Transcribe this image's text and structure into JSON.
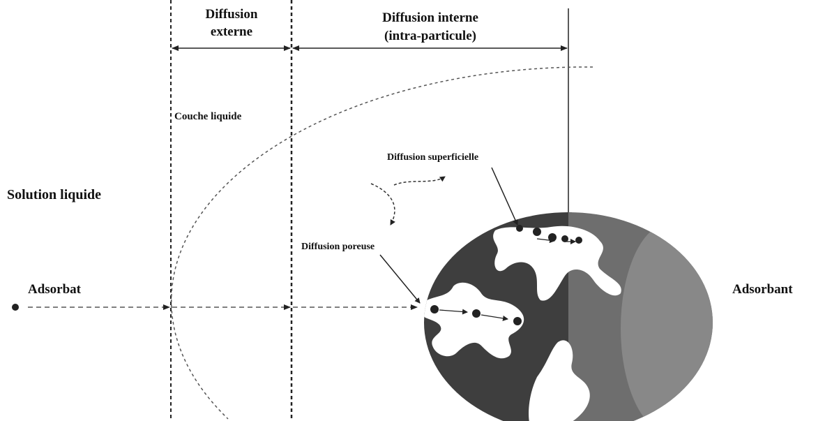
{
  "zones": [
    {
      "lines": [
        "Diffusion",
        "externe"
      ]
    },
    {
      "lines": [
        "Diffusion interne",
        "(intra-particule)"
      ]
    }
  ],
  "layer_label": "Couche liquide",
  "solution_label": "Solution liquide",
  "adsorbate_label": "Adsorbat",
  "adsorbent_label": "Adsorbant",
  "surface_label": "Diffusion superficielle",
  "pore_label": "Diffusion poreuse"
}
